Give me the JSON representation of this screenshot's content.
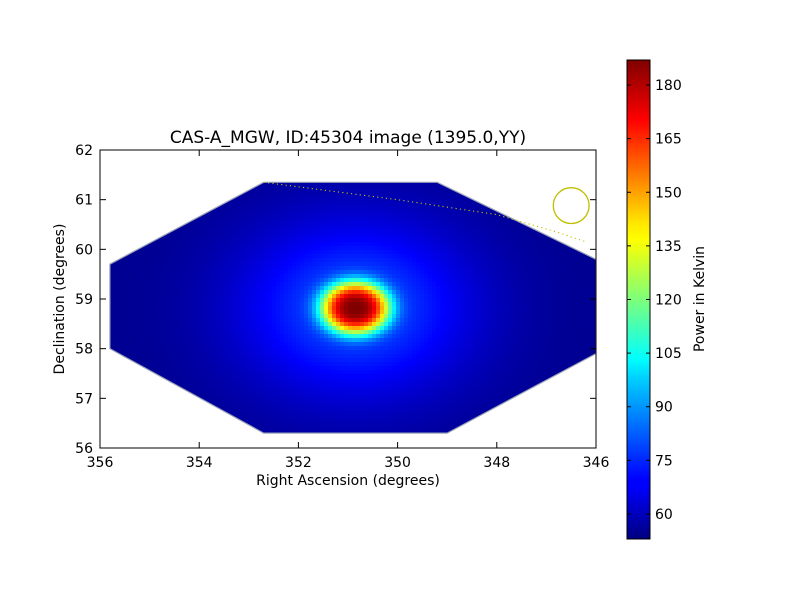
{
  "chart_data": {
    "type": "heatmap",
    "title": "CAS-A_MGW, ID:45304 image (1395.0,YY)",
    "xlabel": "Right Ascension (degrees)",
    "ylabel": "Declination (degrees)",
    "xlim": [
      356,
      346
    ],
    "ylim": [
      56,
      62
    ],
    "x_ticks": [
      "356",
      "354",
      "352",
      "350",
      "348",
      "346"
    ],
    "y_ticks": [
      "56",
      "57",
      "58",
      "59",
      "60",
      "61",
      "62"
    ],
    "colorbar": {
      "label": "Power in Kelvin",
      "range": [
        53,
        187
      ],
      "ticks": [
        "60",
        "75",
        "90",
        "105",
        "120",
        "135",
        "150",
        "165",
        "180"
      ],
      "colormap": "jet"
    },
    "field_polygon": [
      [
        355.8,
        59.7
      ],
      [
        352.7,
        61.35
      ],
      [
        349.2,
        61.35
      ],
      [
        346.0,
        59.8
      ],
      [
        346.0,
        57.9
      ],
      [
        349.0,
        56.3
      ],
      [
        352.7,
        56.3
      ],
      [
        355.8,
        58.0
      ]
    ],
    "background_level": 55,
    "sources": [
      {
        "ra": 350.85,
        "dec": 58.82,
        "peak": 187,
        "sigma_ra": 0.55,
        "sigma_dec": 0.42
      }
    ],
    "beam_circle": {
      "ra": 346.5,
      "dec": 60.88,
      "radius_deg": 0.36,
      "color": "#bfbf00"
    },
    "dotted_track": [
      [
        352.7,
        61.35
      ],
      [
        350.0,
        61.0
      ],
      [
        348.0,
        60.7
      ],
      [
        346.8,
        60.35
      ],
      [
        346.2,
        60.15
      ]
    ],
    "track_color": "#bfbf00"
  }
}
